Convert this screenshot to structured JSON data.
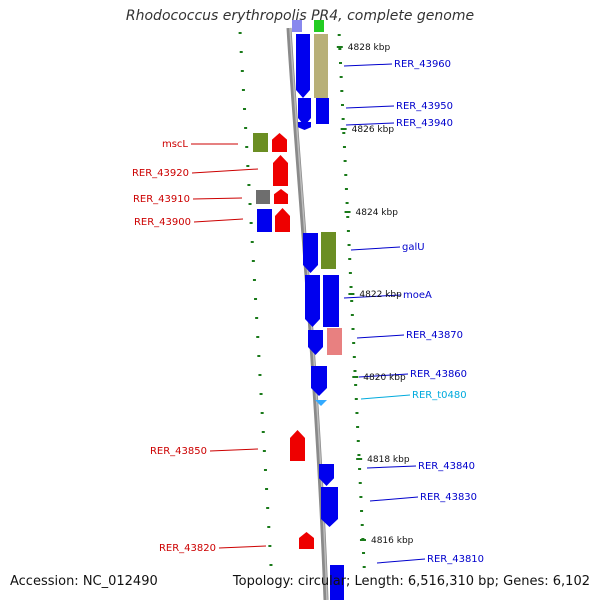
{
  "title": "Rhodococcus erythropolis PR4, complete genome",
  "footer": {
    "accession": "Accession: NC_012490",
    "summary": "Topology: circular; Length: 6,516,310 bp; Genes: 6,102"
  },
  "colors": {
    "backbone": "#888888",
    "ruler_ticks": "#1a7a1a",
    "forward_label": "#0000cc",
    "reverse_label": "#cc0000",
    "rna_label": "#00aadd",
    "blue_gene": "#0000ee",
    "red_gene": "#ee0000",
    "olive_cog": "#6b8e23",
    "khaki_cog": "#b8b078",
    "grey_cog": "#6e6e6e",
    "pink_cog": "#e88080"
  },
  "ruler": [
    {
      "label": "4828 kbp"
    },
    {
      "label": "4826 kbp"
    },
    {
      "label": "4824 kbp"
    },
    {
      "label": "4822 kbp"
    },
    {
      "label": "4820 kbp"
    },
    {
      "label": "4818 kbp"
    },
    {
      "label": "4816 kbp"
    }
  ],
  "forward_genes": [
    {
      "label": "RER_43960",
      "color": "blue"
    },
    {
      "label": "RER_43950",
      "color": "blue"
    },
    {
      "label": "RER_43940",
      "color": "blue"
    },
    {
      "label": "galU",
      "color": "blue"
    },
    {
      "label": "moeA",
      "color": "blue"
    },
    {
      "label": "RER_43870",
      "color": "blue"
    },
    {
      "label": "RER_43860",
      "color": "blue"
    },
    {
      "label": "RER_t0480",
      "color": "rna"
    },
    {
      "label": "RER_43840",
      "color": "blue"
    },
    {
      "label": "RER_43830",
      "color": "blue"
    },
    {
      "label": "RER_43810",
      "color": "blue"
    }
  ],
  "reverse_genes": [
    {
      "label": "mscL",
      "color": "red"
    },
    {
      "label": "RER_43920",
      "color": "red"
    },
    {
      "label": "RER_43910",
      "color": "red"
    },
    {
      "label": "RER_43900",
      "color": "red"
    },
    {
      "label": "RER_43850",
      "color": "red"
    },
    {
      "label": "RER_43820",
      "color": "red"
    }
  ]
}
